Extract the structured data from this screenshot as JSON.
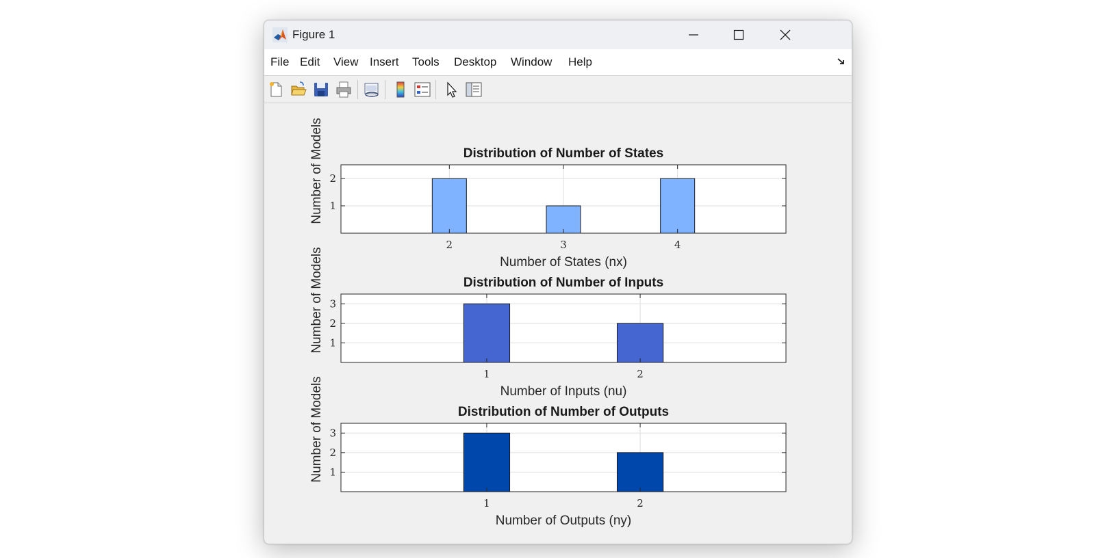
{
  "window": {
    "title": "Figure 1"
  },
  "menu": [
    "File",
    "Edit",
    "View",
    "Insert",
    "Tools",
    "Desktop",
    "Window",
    "Help"
  ],
  "toolbar": {
    "icons": [
      "new-figure-icon",
      "open-file-icon",
      "save-icon",
      "print-icon",
      "link-plot-icon",
      "insert-colorbar-icon",
      "insert-legend-icon",
      "edit-plot-icon",
      "property-inspector-icon"
    ]
  },
  "colors": {
    "plot1": "#80b3ff",
    "plot2": "#4566d1",
    "plot3": "#0047ab"
  },
  "chart_data": [
    {
      "type": "bar",
      "title": "Distribution of Number of States",
      "xlabel": "Number of States (nx)",
      "ylabel": "Number of Models",
      "categories": [
        "2",
        "3",
        "4"
      ],
      "values": [
        2,
        1,
        2
      ],
      "xlim": [
        1.05,
        4.95
      ],
      "ylim": [
        0,
        2.5
      ],
      "yticks": [
        1,
        2
      ],
      "grid": true
    },
    {
      "type": "bar",
      "title": "Distribution of Number of Inputs",
      "xlabel": "Number of Inputs (nu)",
      "ylabel": "Number of Models",
      "categories": [
        "1",
        "2"
      ],
      "values": [
        3,
        2
      ],
      "xlim": [
        0.05,
        2.95
      ],
      "ylim": [
        0,
        3.5
      ],
      "yticks": [
        1,
        2,
        3
      ],
      "grid": true
    },
    {
      "type": "bar",
      "title": "Distribution of Number of Outputs",
      "xlabel": "Number of Outputs (ny)",
      "ylabel": "Number of Models",
      "categories": [
        "1",
        "2"
      ],
      "values": [
        3,
        2
      ],
      "xlim": [
        0.05,
        2.95
      ],
      "ylim": [
        0,
        3.5
      ],
      "yticks": [
        1,
        2,
        3
      ],
      "grid": true
    }
  ]
}
